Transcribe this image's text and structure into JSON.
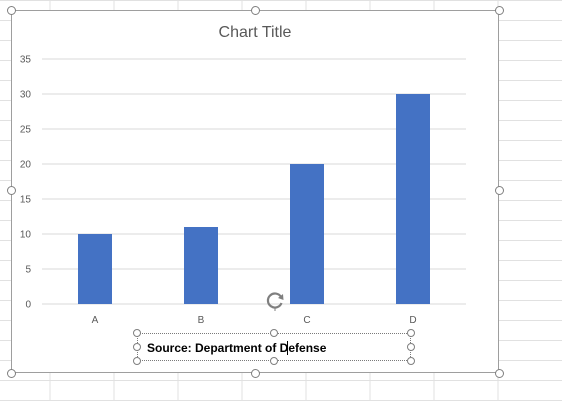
{
  "chart_data": {
    "type": "bar",
    "title": "Chart Title",
    "categories": [
      "A",
      "B",
      "C",
      "D"
    ],
    "values": [
      10,
      11,
      20,
      30
    ],
    "ylim": [
      0,
      35
    ],
    "yticks": [
      0,
      5,
      10,
      15,
      20,
      25,
      30,
      35
    ],
    "grid": true,
    "xlabel": "",
    "ylabel": ""
  },
  "textbox": {
    "text": "Source: Department of Defense"
  },
  "colors": {
    "bar": "#4472c4",
    "gridline": "#d9d9d9",
    "handle": "#7f7f7f",
    "sheet_gridline": "#e1e1e1"
  },
  "icons": {
    "rotate": "rotate-handle-icon",
    "resize": "resize-handle-icon"
  }
}
